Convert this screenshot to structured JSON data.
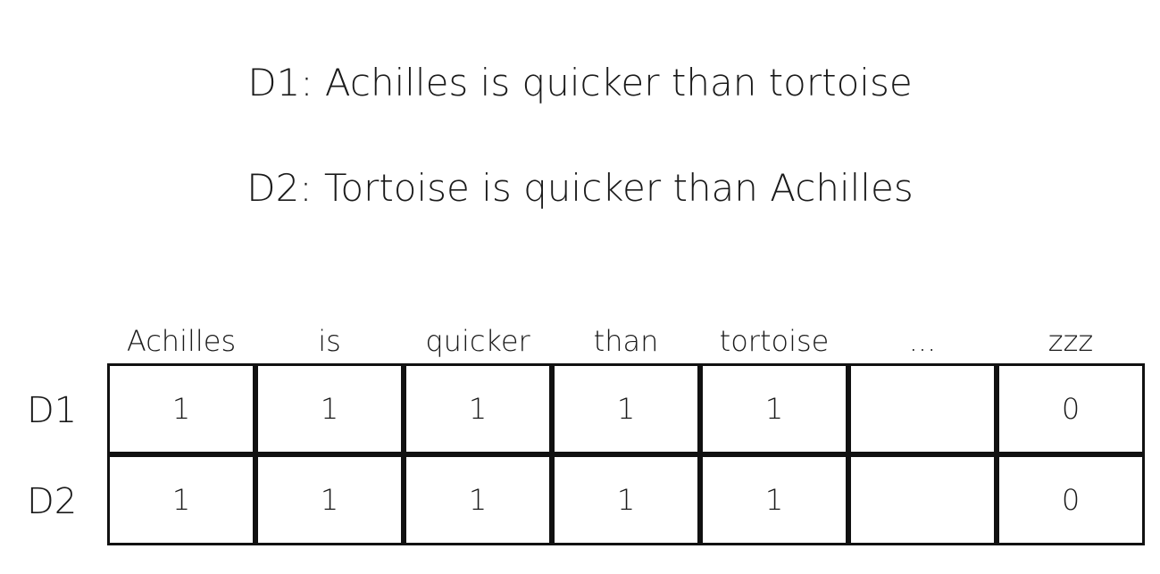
{
  "sentences": [
    "D1: Achilles is quicker than tortoise",
    "D2: Tortoise is quicker than Achilles"
  ],
  "columns": [
    "Achilles",
    "is",
    "quicker",
    "than",
    "tortoise",
    "...",
    "zzz"
  ],
  "rows": [
    {
      "label": "D1",
      "values": [
        "1",
        "1",
        "1",
        "1",
        "1",
        "",
        "0"
      ]
    },
    {
      "label": "D2",
      "values": [
        "1",
        "1",
        "1",
        "1",
        "1",
        "",
        "0"
      ]
    }
  ]
}
